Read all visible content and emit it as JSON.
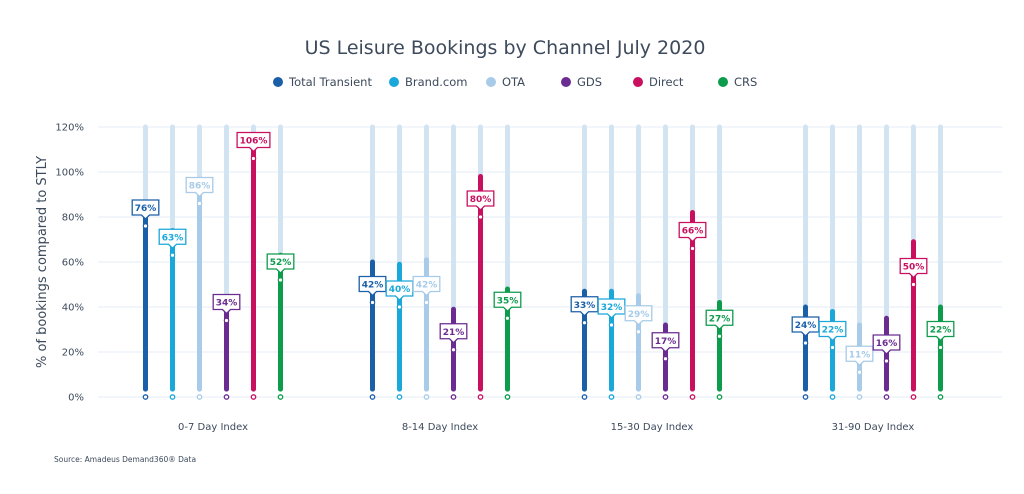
{
  "chart_data": {
    "type": "bar",
    "title": "US Leisure Bookings by Channel July 2020",
    "ylabel": "% of bookings compared to STLY",
    "xlabel": "",
    "ylim": [
      0,
      120
    ],
    "yticks": [
      0,
      20,
      40,
      60,
      80,
      100,
      120
    ],
    "ytick_labels": [
      "0%",
      "20%",
      "40%",
      "60%",
      "80%",
      "100%",
      "120%"
    ],
    "grid": true,
    "legend_position": "top",
    "categories": [
      "0-7 Day Index",
      "8-14 Day Index",
      "15-30 Day Index",
      "31-90 Day Index"
    ],
    "series": [
      {
        "name": "Total Transient",
        "color": "#1b5fa8",
        "values": [
          76,
          42,
          33,
          24
        ],
        "labels": [
          "76%",
          "42%",
          "33%",
          "24%"
        ],
        "bar_top": [
          81,
          60,
          47,
          40
        ]
      },
      {
        "name": "Brand.com",
        "color": "#1aa7d9",
        "values": [
          63,
          40,
          32,
          22
        ],
        "labels": [
          "63%",
          "40%",
          "32%",
          "22%"
        ],
        "bar_top": [
          74,
          59,
          47,
          38
        ]
      },
      {
        "name": "OTA",
        "color": "#a7cbe8",
        "values": [
          86,
          42,
          29,
          11
        ],
        "labels": [
          "86%",
          "42%",
          "29%",
          "11%"
        ],
        "bar_top": [
          96,
          61,
          45,
          32
        ]
      },
      {
        "name": "GDS",
        "color": "#6b2c91",
        "values": [
          34,
          21,
          17,
          16
        ],
        "labels": [
          "34%",
          "21%",
          "17%",
          "16%"
        ],
        "bar_top": [
          40,
          39,
          32,
          35
        ]
      },
      {
        "name": "Direct",
        "color": "#c8105f",
        "values": [
          106,
          80,
          66,
          50
        ],
        "labels": [
          "106%",
          "80%",
          "66%",
          "50%"
        ],
        "bar_top": [
          115,
          98,
          82,
          69
        ]
      },
      {
        "name": "CRS",
        "color": "#0d9b4c",
        "values": [
          52,
          35,
          27,
          22
        ],
        "labels": [
          "52%",
          "35%",
          "27%",
          "22%"
        ],
        "bar_top": [
          63,
          48,
          42,
          40
        ]
      }
    ],
    "background_bar_color": "#d2e3f1",
    "grid_color": "#e6edf4"
  },
  "source": "Source: Amadeus Demand360® Data"
}
